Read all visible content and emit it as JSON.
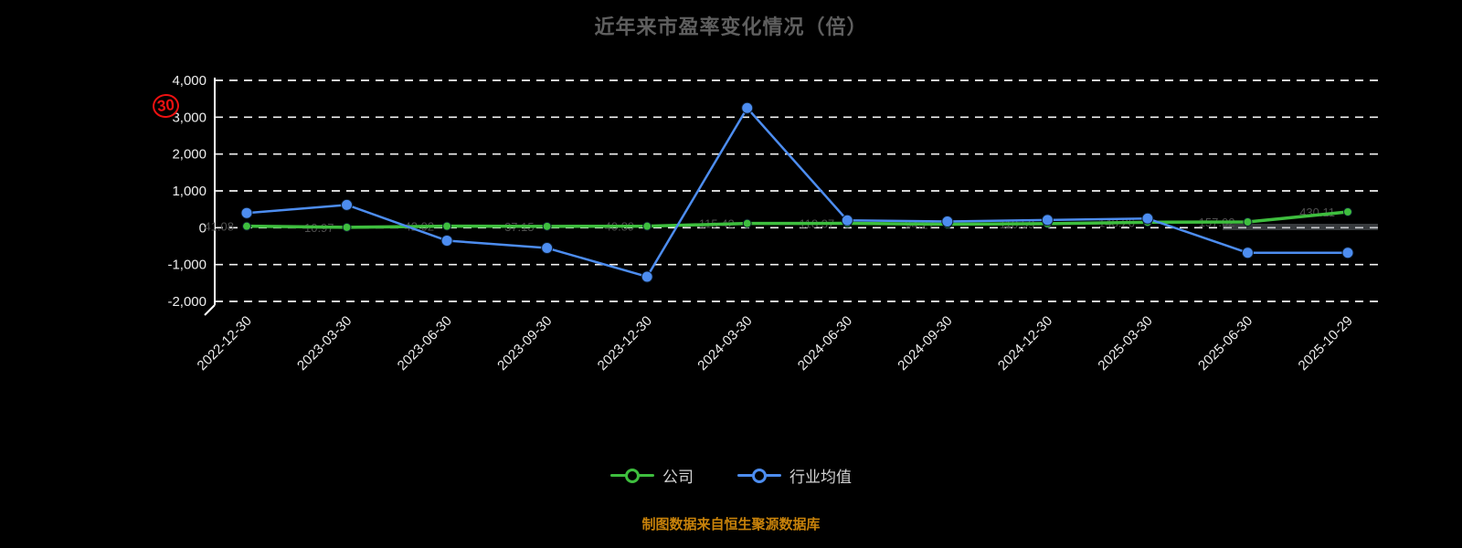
{
  "header": {
    "title": "近年来市盈率变化情况（倍）"
  },
  "annotation": {
    "text": "30",
    "color": "#ee1111"
  },
  "legend": {
    "items": [
      {
        "label": "公司",
        "color": "#3ebe3e"
      },
      {
        "label": "行业均值",
        "color": "#4d8df0"
      }
    ]
  },
  "footer": {
    "text": "制图数据来自恒生聚源数据库",
    "color": "#c8820a"
  },
  "chart_data": {
    "type": "line",
    "title": "近年来市盈率变化情况（倍）",
    "categories": [
      "2022-12-30",
      "2023-03-30",
      "2023-06-30",
      "2023-09-30",
      "2023-12-30",
      "2024-03-30",
      "2024-06-30",
      "2024-09-30",
      "2024-12-30",
      "2025-03-30",
      "2025-06-30",
      "2025-10-29"
    ],
    "series": [
      {
        "name": "公司",
        "color": "#3ebe3e",
        "line_width": 3.5,
        "marker_radius": 4.5,
        "values": [
          41.08,
          10.97,
          42.02,
          37.15,
          40.89,
          115.42,
          118.37,
          94.27,
          110.59,
          148.26,
          157.02,
          430.11
        ],
        "labels": [
          "41.08",
          "10.97",
          "42.02",
          "37.15",
          "40.89",
          "115.42",
          "118.37",
          "94.27",
          "110.59",
          "148.26",
          "157.02",
          "430.11"
        ]
      },
      {
        "name": "行业均值",
        "color": "#4d8df0",
        "line_width": 2.5,
        "marker_radius": 6,
        "values": [
          400,
          620,
          -350,
          -550,
          -1330,
          3250,
          200,
          170,
          210,
          250,
          -680,
          -680
        ],
        "labels": []
      }
    ],
    "ylim": [
      -2000,
      4000
    ],
    "yticks": [
      {
        "value": 4000,
        "label": "4,000"
      },
      {
        "value": 3000,
        "label": "3,000"
      },
      {
        "value": 2000,
        "label": "2,000"
      },
      {
        "value": 1000,
        "label": "1,000"
      },
      {
        "value": 0,
        "label": "0"
      },
      {
        "value": -1000,
        "label": "-1,000"
      },
      {
        "value": -2000,
        "label": "-2,000"
      }
    ],
    "grid": {
      "style": "dashed",
      "color": "#ffffff"
    },
    "legend_position": "bottom",
    "xlabel": "",
    "ylabel": ""
  }
}
